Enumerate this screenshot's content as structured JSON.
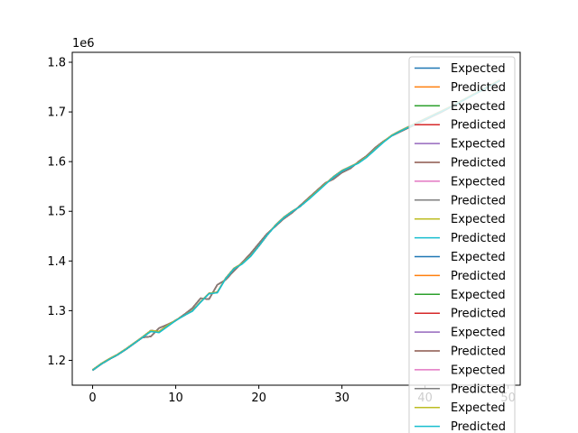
{
  "chart_data": {
    "type": "line",
    "title": "",
    "xlabel": "",
    "ylabel": "",
    "offset_label": "1e6",
    "xlim": [
      -2.45,
      51.45
    ],
    "ylim": [
      1.15,
      1.82
    ],
    "xticks": [
      0,
      10,
      20,
      30,
      40,
      50
    ],
    "xtick_labels": [
      "0",
      "10",
      "20",
      "30",
      "40",
      "50"
    ],
    "yticks": [
      1.2,
      1.3,
      1.4,
      1.5,
      1.6,
      1.7,
      1.8
    ],
    "ytick_labels": [
      "1.2",
      "1.3",
      "1.4",
      "1.5",
      "1.6",
      "1.7",
      "1.8"
    ],
    "grid": false,
    "legend_position": "upper right",
    "colors": [
      "#1f77b4",
      "#ff7f0e",
      "#2ca02c",
      "#d62728",
      "#9467bd",
      "#8c564b",
      "#e377c2",
      "#7f7f7f",
      "#bcbd22",
      "#17becf"
    ],
    "x": [
      0,
      1,
      2,
      3,
      4,
      5,
      6,
      7,
      8,
      9,
      10,
      11,
      12,
      13,
      14,
      15,
      16,
      17,
      18,
      19,
      20,
      21,
      22,
      23,
      24,
      25,
      26,
      27,
      28,
      29,
      30,
      31,
      32,
      33,
      34,
      35,
      36,
      37,
      38,
      39,
      40,
      41,
      42,
      43,
      44,
      45,
      46,
      47,
      48,
      49
    ],
    "series": [
      {
        "name": "Expected",
        "values": [
          1.181,
          1.193,
          1.203,
          1.212,
          1.223,
          1.235,
          1.247,
          1.26,
          1.258,
          1.27,
          1.281,
          1.29,
          1.3,
          1.318,
          1.335,
          1.337,
          1.365,
          1.385,
          1.395,
          1.41,
          1.43,
          1.452,
          1.472,
          1.488,
          1.5,
          1.51,
          1.525,
          1.54,
          1.555,
          1.57,
          1.582,
          1.59,
          1.598,
          1.61,
          1.625,
          1.64,
          1.653,
          1.662,
          1.67,
          1.678,
          1.686,
          1.694,
          1.702,
          1.71,
          1.719,
          1.728,
          1.737,
          1.746,
          1.755,
          1.764
        ]
      },
      {
        "name": "Predicted",
        "values": [
          1.18,
          1.192,
          1.202,
          1.211,
          1.222,
          1.234,
          1.246,
          1.248,
          1.265,
          1.272,
          1.28,
          1.292,
          1.305,
          1.325,
          1.323,
          1.352,
          1.362,
          1.38,
          1.397,
          1.415,
          1.435,
          1.455,
          1.47,
          1.485,
          1.497,
          1.512,
          1.527,
          1.542,
          1.557,
          1.565,
          1.578,
          1.586,
          1.6,
          1.612,
          1.628,
          1.641,
          1.652,
          1.66,
          1.668,
          1.676,
          1.684,
          1.692,
          1.7,
          1.709,
          1.718,
          1.727,
          1.736,
          1.745,
          1.754,
          1.763
        ]
      },
      {
        "name": "Expected",
        "values": [
          1.181,
          1.193,
          1.203,
          1.212,
          1.223,
          1.235,
          1.247,
          1.26,
          1.258,
          1.27,
          1.281,
          1.29,
          1.3,
          1.318,
          1.335,
          1.337,
          1.365,
          1.385,
          1.395,
          1.41,
          1.43,
          1.452,
          1.472,
          1.488,
          1.5,
          1.51,
          1.525,
          1.54,
          1.555,
          1.57,
          1.582,
          1.59,
          1.598,
          1.61,
          1.625,
          1.64,
          1.653,
          1.662,
          1.67,
          1.678,
          1.686,
          1.694,
          1.702,
          1.71,
          1.719,
          1.728,
          1.737,
          1.746,
          1.755,
          1.764
        ]
      },
      {
        "name": "Predicted",
        "values": [
          1.18,
          1.192,
          1.202,
          1.211,
          1.222,
          1.234,
          1.246,
          1.248,
          1.265,
          1.272,
          1.28,
          1.292,
          1.305,
          1.325,
          1.323,
          1.352,
          1.362,
          1.38,
          1.397,
          1.415,
          1.435,
          1.455,
          1.47,
          1.485,
          1.497,
          1.512,
          1.527,
          1.542,
          1.557,
          1.565,
          1.578,
          1.586,
          1.6,
          1.612,
          1.628,
          1.641,
          1.652,
          1.66,
          1.668,
          1.676,
          1.684,
          1.692,
          1.7,
          1.709,
          1.718,
          1.727,
          1.736,
          1.745,
          1.754,
          1.763
        ]
      },
      {
        "name": "Expected",
        "values": [
          1.181,
          1.193,
          1.203,
          1.212,
          1.223,
          1.235,
          1.247,
          1.26,
          1.258,
          1.27,
          1.281,
          1.29,
          1.3,
          1.318,
          1.335,
          1.337,
          1.365,
          1.385,
          1.395,
          1.41,
          1.43,
          1.452,
          1.472,
          1.488,
          1.5,
          1.51,
          1.525,
          1.54,
          1.555,
          1.57,
          1.582,
          1.59,
          1.598,
          1.61,
          1.625,
          1.64,
          1.653,
          1.662,
          1.67,
          1.678,
          1.686,
          1.694,
          1.702,
          1.71,
          1.719,
          1.728,
          1.737,
          1.746,
          1.755,
          1.764
        ]
      },
      {
        "name": "Predicted",
        "values": [
          1.18,
          1.192,
          1.202,
          1.211,
          1.222,
          1.234,
          1.246,
          1.248,
          1.265,
          1.272,
          1.28,
          1.292,
          1.305,
          1.325,
          1.323,
          1.352,
          1.362,
          1.38,
          1.397,
          1.415,
          1.435,
          1.455,
          1.47,
          1.485,
          1.497,
          1.512,
          1.527,
          1.542,
          1.557,
          1.565,
          1.578,
          1.586,
          1.6,
          1.612,
          1.628,
          1.641,
          1.652,
          1.66,
          1.668,
          1.676,
          1.684,
          1.692,
          1.7,
          1.709,
          1.718,
          1.727,
          1.736,
          1.745,
          1.754,
          1.763
        ]
      },
      {
        "name": "Expected",
        "values": [
          1.181,
          1.193,
          1.203,
          1.212,
          1.223,
          1.235,
          1.247,
          1.26,
          1.258,
          1.27,
          1.281,
          1.29,
          1.3,
          1.318,
          1.335,
          1.337,
          1.365,
          1.385,
          1.395,
          1.41,
          1.43,
          1.452,
          1.472,
          1.488,
          1.5,
          1.51,
          1.525,
          1.54,
          1.555,
          1.57,
          1.582,
          1.59,
          1.598,
          1.61,
          1.625,
          1.64,
          1.653,
          1.662,
          1.67,
          1.678,
          1.686,
          1.694,
          1.702,
          1.71,
          1.719,
          1.728,
          1.737,
          1.746,
          1.755,
          1.764
        ]
      },
      {
        "name": "Predicted",
        "values": [
          1.18,
          1.192,
          1.202,
          1.211,
          1.222,
          1.234,
          1.246,
          1.248,
          1.265,
          1.272,
          1.28,
          1.292,
          1.305,
          1.325,
          1.323,
          1.352,
          1.362,
          1.38,
          1.397,
          1.415,
          1.435,
          1.455,
          1.47,
          1.485,
          1.497,
          1.512,
          1.527,
          1.542,
          1.557,
          1.565,
          1.578,
          1.586,
          1.6,
          1.612,
          1.628,
          1.641,
          1.652,
          1.66,
          1.668,
          1.676,
          1.684,
          1.692,
          1.7,
          1.709,
          1.718,
          1.727,
          1.736,
          1.745,
          1.754,
          1.763
        ]
      },
      {
        "name": "Expected",
        "values": [
          1.181,
          1.193,
          1.203,
          1.212,
          1.223,
          1.235,
          1.247,
          1.26,
          1.258,
          1.27,
          1.281,
          1.29,
          1.3,
          1.318,
          1.335,
          1.337,
          1.365,
          1.385,
          1.395,
          1.41,
          1.43,
          1.452,
          1.472,
          1.488,
          1.5,
          1.51,
          1.525,
          1.54,
          1.555,
          1.57,
          1.582,
          1.59,
          1.598,
          1.61,
          1.625,
          1.64,
          1.653,
          1.662,
          1.67,
          1.678,
          1.686,
          1.694,
          1.702,
          1.71,
          1.719,
          1.728,
          1.737,
          1.746,
          1.755,
          1.764
        ]
      },
      {
        "name": "Predicted",
        "values": [
          1.18,
          1.192,
          1.202,
          1.211,
          1.222,
          1.234,
          1.246,
          1.258,
          1.256,
          1.268,
          1.28,
          1.29,
          1.299,
          1.317,
          1.334,
          1.336,
          1.364,
          1.384,
          1.394,
          1.409,
          1.43,
          1.452,
          1.471,
          1.487,
          1.499,
          1.51,
          1.524,
          1.539,
          1.554,
          1.569,
          1.581,
          1.589,
          1.597,
          1.609,
          1.624,
          1.639,
          1.652,
          1.661,
          1.669,
          1.677,
          1.685,
          1.693,
          1.701,
          1.709,
          1.718,
          1.727,
          1.736,
          1.745,
          1.754,
          1.763
        ]
      },
      {
        "name": "Expected",
        "values": [
          1.181,
          1.193,
          1.203,
          1.212,
          1.223,
          1.235,
          1.247,
          1.26,
          1.258,
          1.27,
          1.281,
          1.29,
          1.3,
          1.318,
          1.335,
          1.337,
          1.365,
          1.385,
          1.395,
          1.41,
          1.43,
          1.452,
          1.472,
          1.488,
          1.5,
          1.51,
          1.525,
          1.54,
          1.555,
          1.57,
          1.582,
          1.59,
          1.598,
          1.61,
          1.625,
          1.64,
          1.653,
          1.662,
          1.67,
          1.678,
          1.686,
          1.694,
          1.702,
          1.71,
          1.719,
          1.728,
          1.737,
          1.746,
          1.755,
          1.764
        ]
      },
      {
        "name": "Predicted",
        "values": [
          1.18,
          1.192,
          1.202,
          1.211,
          1.222,
          1.234,
          1.246,
          1.248,
          1.265,
          1.272,
          1.28,
          1.292,
          1.305,
          1.325,
          1.323,
          1.352,
          1.362,
          1.38,
          1.397,
          1.415,
          1.435,
          1.455,
          1.47,
          1.485,
          1.497,
          1.512,
          1.527,
          1.542,
          1.557,
          1.565,
          1.578,
          1.586,
          1.6,
          1.612,
          1.628,
          1.641,
          1.652,
          1.66,
          1.668,
          1.676,
          1.684,
          1.692,
          1.7,
          1.709,
          1.718,
          1.727,
          1.736,
          1.745,
          1.754,
          1.763
        ]
      },
      {
        "name": "Expected",
        "values": [
          1.181,
          1.193,
          1.203,
          1.212,
          1.223,
          1.235,
          1.247,
          1.26,
          1.258,
          1.27,
          1.281,
          1.29,
          1.3,
          1.318,
          1.335,
          1.337,
          1.365,
          1.385,
          1.395,
          1.41,
          1.43,
          1.452,
          1.472,
          1.488,
          1.5,
          1.51,
          1.525,
          1.54,
          1.555,
          1.57,
          1.582,
          1.59,
          1.598,
          1.61,
          1.625,
          1.64,
          1.653,
          1.662,
          1.67,
          1.678,
          1.686,
          1.694,
          1.702,
          1.71,
          1.719,
          1.728,
          1.737,
          1.746,
          1.755,
          1.764
        ]
      },
      {
        "name": "Predicted",
        "values": [
          1.18,
          1.192,
          1.202,
          1.211,
          1.222,
          1.234,
          1.246,
          1.248,
          1.265,
          1.272,
          1.28,
          1.292,
          1.305,
          1.325,
          1.323,
          1.352,
          1.362,
          1.38,
          1.397,
          1.415,
          1.435,
          1.455,
          1.47,
          1.485,
          1.497,
          1.512,
          1.527,
          1.542,
          1.557,
          1.565,
          1.578,
          1.586,
          1.6,
          1.612,
          1.628,
          1.641,
          1.652,
          1.66,
          1.668,
          1.676,
          1.684,
          1.692,
          1.7,
          1.709,
          1.718,
          1.727,
          1.736,
          1.745,
          1.754,
          1.763
        ]
      },
      {
        "name": "Expected",
        "values": [
          1.181,
          1.193,
          1.203,
          1.212,
          1.223,
          1.235,
          1.247,
          1.26,
          1.258,
          1.27,
          1.281,
          1.29,
          1.3,
          1.318,
          1.335,
          1.337,
          1.365,
          1.385,
          1.395,
          1.41,
          1.43,
          1.452,
          1.472,
          1.488,
          1.5,
          1.51,
          1.525,
          1.54,
          1.555,
          1.57,
          1.582,
          1.59,
          1.598,
          1.61,
          1.625,
          1.64,
          1.653,
          1.662,
          1.67,
          1.678,
          1.686,
          1.694,
          1.702,
          1.71,
          1.719,
          1.728,
          1.737,
          1.746,
          1.755,
          1.764
        ]
      },
      {
        "name": "Predicted",
        "values": [
          1.18,
          1.192,
          1.202,
          1.211,
          1.222,
          1.234,
          1.246,
          1.248,
          1.265,
          1.272,
          1.28,
          1.292,
          1.305,
          1.325,
          1.323,
          1.352,
          1.362,
          1.38,
          1.397,
          1.415,
          1.435,
          1.455,
          1.47,
          1.485,
          1.497,
          1.512,
          1.527,
          1.542,
          1.557,
          1.565,
          1.578,
          1.586,
          1.6,
          1.612,
          1.628,
          1.641,
          1.652,
          1.66,
          1.668,
          1.676,
          1.684,
          1.692,
          1.7,
          1.709,
          1.718,
          1.727,
          1.736,
          1.745,
          1.754,
          1.763
        ]
      },
      {
        "name": "Expected",
        "values": [
          1.181,
          1.193,
          1.203,
          1.212,
          1.223,
          1.235,
          1.247,
          1.26,
          1.258,
          1.27,
          1.281,
          1.29,
          1.3,
          1.318,
          1.335,
          1.337,
          1.365,
          1.385,
          1.395,
          1.41,
          1.43,
          1.452,
          1.472,
          1.488,
          1.5,
          1.51,
          1.525,
          1.54,
          1.555,
          1.57,
          1.582,
          1.59,
          1.598,
          1.61,
          1.625,
          1.64,
          1.653,
          1.662,
          1.67,
          1.678,
          1.686,
          1.694,
          1.702,
          1.71,
          1.719,
          1.728,
          1.737,
          1.746,
          1.755,
          1.764
        ]
      },
      {
        "name": "Predicted",
        "values": [
          1.18,
          1.192,
          1.202,
          1.211,
          1.222,
          1.234,
          1.246,
          1.248,
          1.265,
          1.272,
          1.28,
          1.292,
          1.305,
          1.325,
          1.323,
          1.352,
          1.362,
          1.38,
          1.397,
          1.415,
          1.435,
          1.455,
          1.47,
          1.485,
          1.497,
          1.512,
          1.527,
          1.542,
          1.557,
          1.565,
          1.578,
          1.586,
          1.6,
          1.612,
          1.628,
          1.641,
          1.652,
          1.66,
          1.668,
          1.676,
          1.684,
          1.692,
          1.7,
          1.709,
          1.718,
          1.727,
          1.736,
          1.745,
          1.754,
          1.763
        ]
      },
      {
        "name": "Expected",
        "values": [
          1.181,
          1.193,
          1.203,
          1.212,
          1.223,
          1.235,
          1.247,
          1.26,
          1.258,
          1.27,
          1.281,
          1.29,
          1.3,
          1.318,
          1.335,
          1.337,
          1.365,
          1.385,
          1.395,
          1.41,
          1.43,
          1.452,
          1.472,
          1.488,
          1.5,
          1.51,
          1.525,
          1.54,
          1.555,
          1.57,
          1.582,
          1.59,
          1.598,
          1.61,
          1.625,
          1.64,
          1.653,
          1.662,
          1.67,
          1.678,
          1.686,
          1.694,
          1.702,
          1.71,
          1.719,
          1.728,
          1.737,
          1.746,
          1.755,
          1.764
        ]
      },
      {
        "name": "Predicted",
        "values": [
          1.18,
          1.192,
          1.202,
          1.211,
          1.222,
          1.234,
          1.246,
          1.258,
          1.256,
          1.268,
          1.28,
          1.29,
          1.299,
          1.317,
          1.334,
          1.336,
          1.364,
          1.384,
          1.394,
          1.409,
          1.43,
          1.452,
          1.471,
          1.487,
          1.499,
          1.51,
          1.524,
          1.539,
          1.554,
          1.569,
          1.581,
          1.589,
          1.597,
          1.609,
          1.624,
          1.639,
          1.652,
          1.661,
          1.669,
          1.677,
          1.685,
          1.693,
          1.701,
          1.709,
          1.718,
          1.727,
          1.736,
          1.745,
          1.754,
          1.763
        ]
      }
    ]
  }
}
